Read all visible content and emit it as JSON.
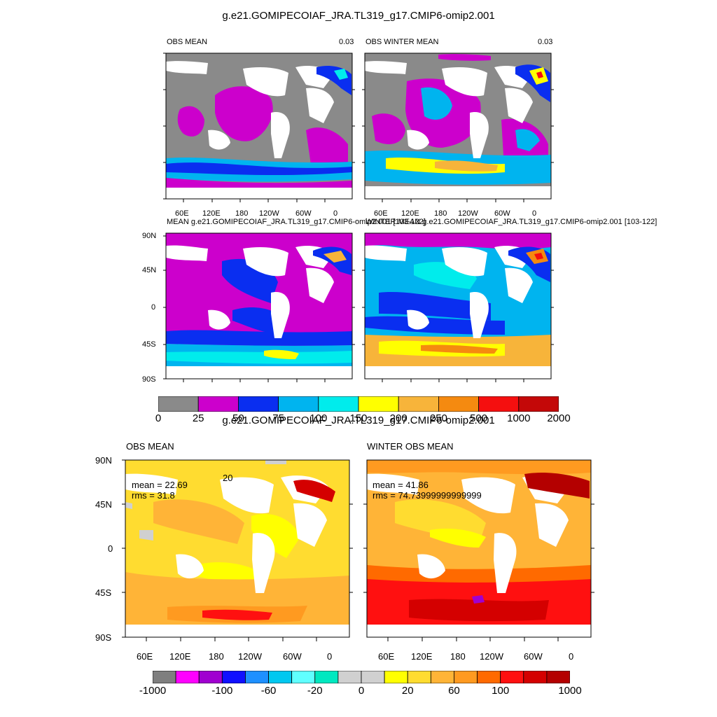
{
  "figure1": {
    "title": "g.e21.GOMIPECOIAF_JRA.TL319_g17.CMIP6-omip2.001",
    "panels": [
      {
        "left_label": "OBS MEAN",
        "right_label": "0.03"
      },
      {
        "left_label": "OBS WINTER MEAN",
        "right_label": "0.03"
      },
      {
        "left_label": "MEAN g.e21.GOMIPECOIAF_JRA.TL319_g17.CMIP6-omip2.001 [103-122]",
        "right_label": ""
      },
      {
        "left_label": "WINTER MEAN g.e21.GOMIPECOIAF_JRA.TL319_g17.CMIP6-omip2.001 [103-122]",
        "right_label": ""
      }
    ],
    "lon_ticks": [
      "60E",
      "120E",
      "180",
      "120W",
      "60W",
      "0"
    ],
    "lat_ticks": [
      "90N",
      "45N",
      "0",
      "45S",
      "90S"
    ],
    "colorbar": {
      "labels": [
        "0",
        "25",
        "50",
        "75",
        "100",
        "150",
        "200",
        "250",
        "500",
        "1000",
        "2000"
      ],
      "colors": [
        "#8a8a8a",
        "#cc00cc",
        "#0a2ef0",
        "#00b4ef",
        "#00ecec",
        "#ffff00",
        "#f7b43a",
        "#f58a10",
        "#f50f0f",
        "#c40808"
      ]
    }
  },
  "figure2": {
    "title": "g.e21.GOMIPECOIAF_JRA.TL319_g17.CMIP6-omip2.001",
    "panels": [
      {
        "left_label": "OBS MEAN",
        "mean": "mean = 22.69",
        "rms": "rms = 31.8",
        "contour_label": "20"
      },
      {
        "left_label": "WINTER OBS MEAN",
        "mean": "mean = 41.86",
        "rms": "rms = 74.73999999999999",
        "contour_label": ""
      }
    ],
    "lon_ticks": [
      "60E",
      "120E",
      "180",
      "120W",
      "60W",
      "0"
    ],
    "lat_ticks": [
      "90N",
      "45N",
      "0",
      "45S",
      "90S"
    ],
    "colorbar": {
      "labels": [
        "-1000",
        "-100",
        "-60",
        "-20",
        "0",
        "20",
        "60",
        "100",
        "1000"
      ],
      "colors": [
        "#7f7f7f",
        "#ff00ff",
        "#a000d0",
        "#1010ff",
        "#1e90ff",
        "#00c8f0",
        "#60ffff",
        "#00e8c0",
        "#d0d0d0",
        "#d0d0d0",
        "#ffff00",
        "#ffdc30",
        "#ffb437",
        "#ff9a20",
        "#ff6a00",
        "#ff1010",
        "#d40000",
        "#b40000"
      ]
    }
  }
}
